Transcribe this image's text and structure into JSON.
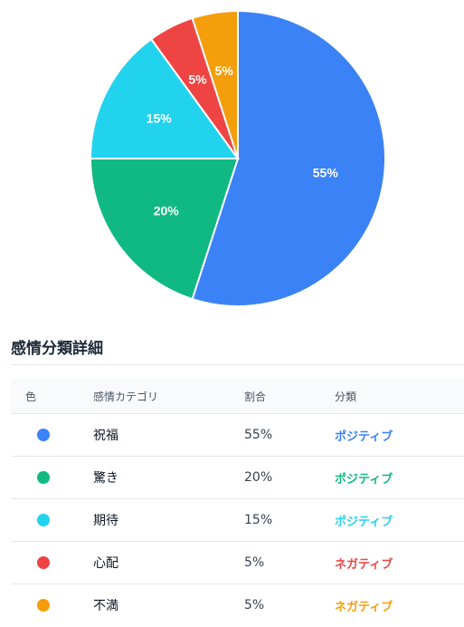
{
  "chart_data": {
    "type": "pie",
    "slices": [
      {
        "label": "祝福",
        "value": 55,
        "display": "55%",
        "color": "#3b82f6"
      },
      {
        "label": "驚き",
        "value": 20,
        "display": "20%",
        "color": "#10b981"
      },
      {
        "label": "期待",
        "value": 15,
        "display": "15%",
        "color": "#22d3ee"
      },
      {
        "label": "心配",
        "value": 5,
        "display": "5%",
        "color": "#ef4444"
      },
      {
        "label": "不満",
        "value": 5,
        "display": "5%",
        "color": "#f59e0b"
      }
    ]
  },
  "section": {
    "title": "感情分類詳細"
  },
  "table": {
    "headers": {
      "color": "色",
      "category": "感情カテゴリ",
      "ratio": "割合",
      "classification": "分類"
    },
    "rows": [
      {
        "category": "祝福",
        "ratio": "55%",
        "classification": "ポジティブ",
        "color": "#3b82f6"
      },
      {
        "category": "驚き",
        "ratio": "20%",
        "classification": "ポジティブ",
        "color": "#10b981"
      },
      {
        "category": "期待",
        "ratio": "15%",
        "classification": "ポジティブ",
        "color": "#22d3ee"
      },
      {
        "category": "心配",
        "ratio": "5%",
        "classification": "ネガティブ",
        "color": "#ef4444"
      },
      {
        "category": "不満",
        "ratio": "5%",
        "classification": "ネガティブ",
        "color": "#f59e0b"
      }
    ]
  }
}
